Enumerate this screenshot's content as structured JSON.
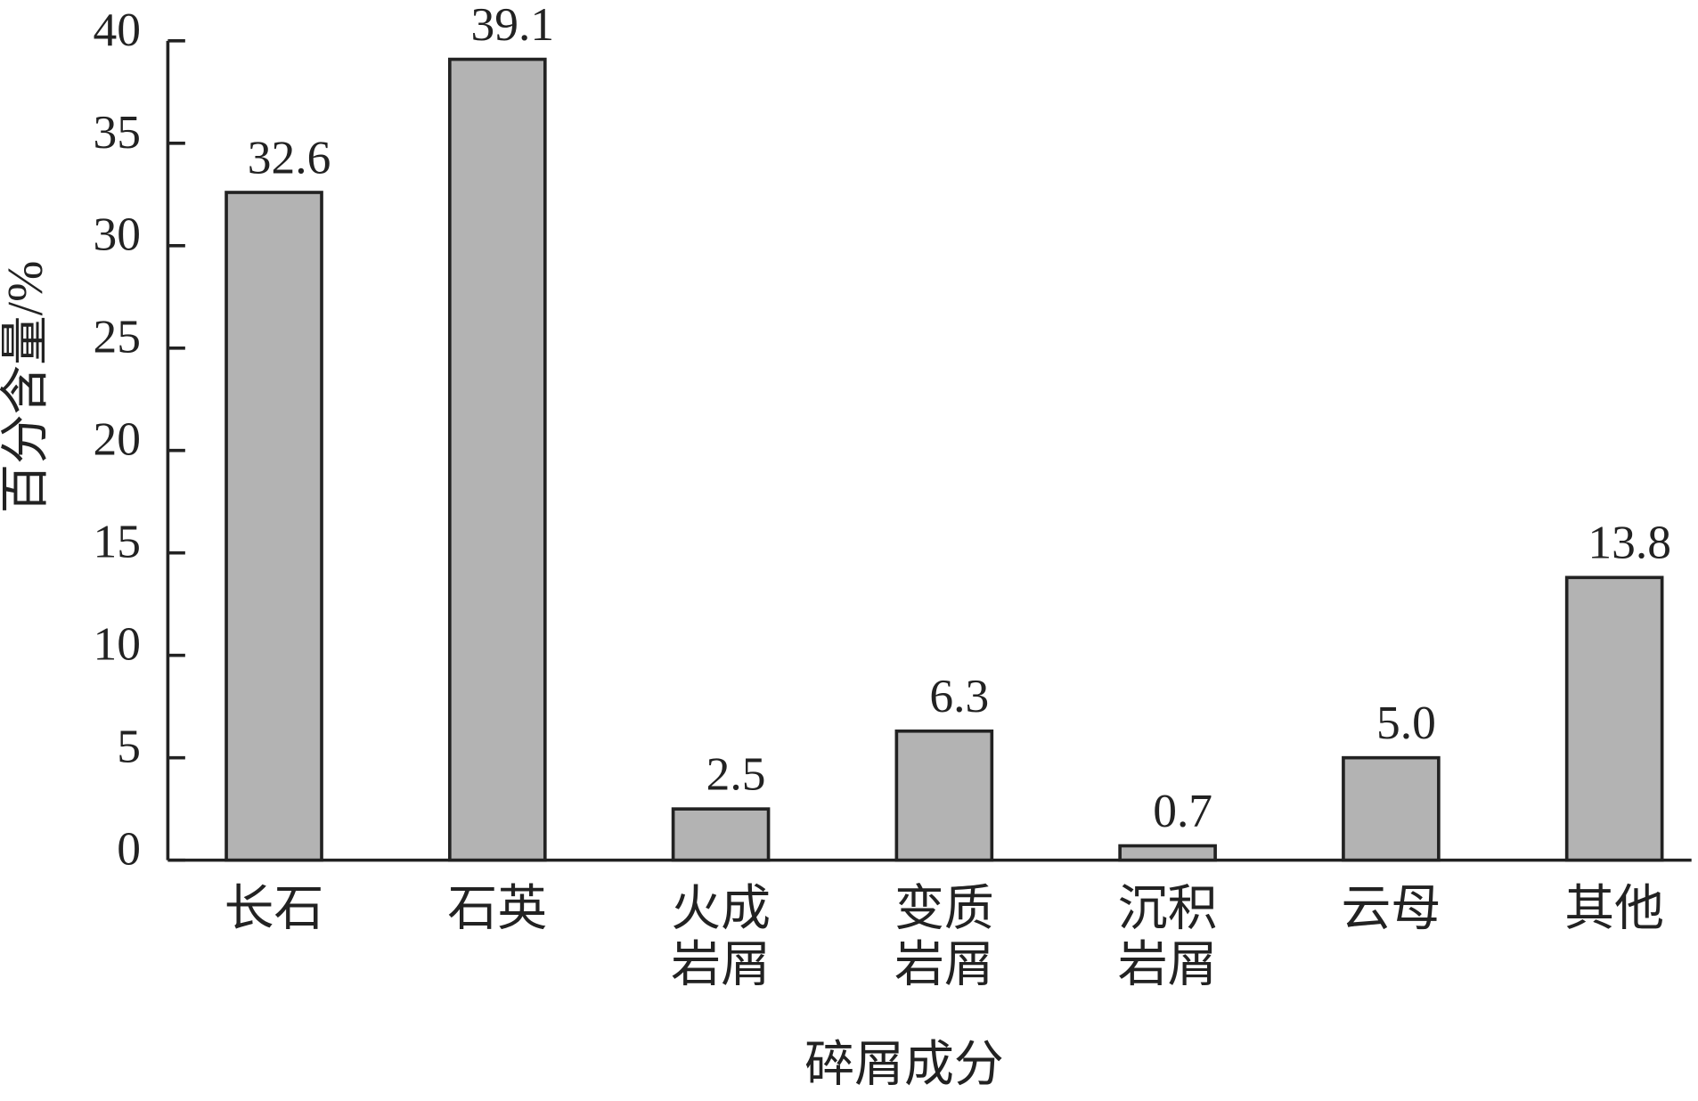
{
  "chart_data": {
    "type": "bar",
    "xlabel": "碎屑成分",
    "ylabel": "百分含量/%",
    "categories": [
      [
        "长石"
      ],
      [
        "石英"
      ],
      [
        "火成",
        "岩屑"
      ],
      [
        "变质",
        "岩屑"
      ],
      [
        "沉积",
        "岩屑"
      ],
      [
        "云母"
      ],
      [
        "其他"
      ]
    ],
    "values": [
      32.6,
      39.1,
      2.5,
      6.3,
      0.7,
      5.0,
      13.8
    ],
    "value_labels": [
      "32.6",
      "39.1",
      "2.5",
      "6.3",
      "0.7",
      "5.0",
      "13.8"
    ],
    "color": "#b3b3b3",
    "ylim": [
      0,
      40
    ],
    "yticks": [
      0,
      5,
      10,
      15,
      20,
      25,
      30,
      35,
      40
    ]
  }
}
